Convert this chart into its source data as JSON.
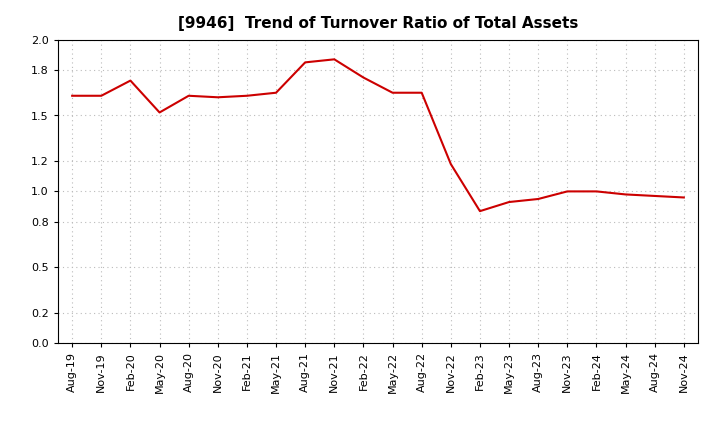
{
  "title": "[9946]  Trend of Turnover Ratio of Total Assets",
  "x_labels": [
    "Aug-19",
    "Nov-19",
    "Feb-20",
    "May-20",
    "Aug-20",
    "Nov-20",
    "Feb-21",
    "May-21",
    "Aug-21",
    "Nov-21",
    "Feb-22",
    "May-22",
    "Aug-22",
    "Nov-22",
    "Feb-23",
    "May-23",
    "Aug-23",
    "Nov-23",
    "Feb-24",
    "May-24",
    "Aug-24",
    "Nov-24"
  ],
  "y_values": [
    1.63,
    1.63,
    1.73,
    1.52,
    1.63,
    1.62,
    1.63,
    1.65,
    1.85,
    1.87,
    1.75,
    1.65,
    1.65,
    1.18,
    0.87,
    0.93,
    0.95,
    1.0,
    1.0,
    0.98,
    0.97,
    0.96
  ],
  "line_color": "#cc0000",
  "background_color": "#ffffff",
  "grid_color": "#bbbbbb",
  "ylim": [
    0.0,
    2.0
  ],
  "yticks": [
    0.0,
    0.2,
    0.5,
    0.8,
    1.0,
    1.2,
    1.5,
    1.8,
    2.0
  ],
  "title_fontsize": 11,
  "tick_fontsize": 8,
  "line_width": 1.5
}
